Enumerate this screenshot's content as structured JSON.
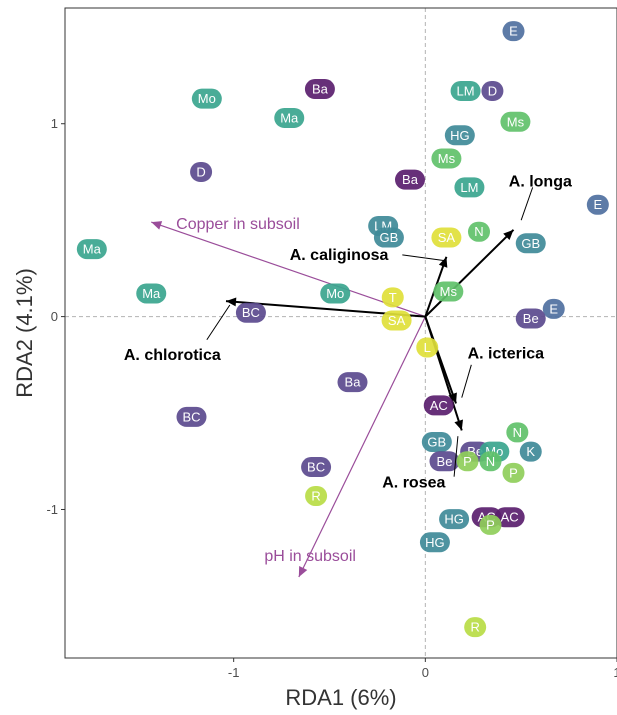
{
  "chart_data": {
    "type": "scatter",
    "xlabel": "RDA1 (6%)",
    "ylabel": "RDA2 (4.1%)",
    "xlim": [
      -1.88,
      1.0
    ],
    "ylim": [
      -1.77,
      1.6
    ],
    "x_ticks": [
      {
        "value": -1,
        "label": "-1"
      },
      {
        "value": 0,
        "label": "0"
      },
      {
        "value": 1,
        "label": "1"
      }
    ],
    "y_ticks": [
      {
        "value": -1,
        "label": "-1"
      },
      {
        "value": 0,
        "label": "0"
      },
      {
        "value": 1,
        "label": "1"
      }
    ],
    "grid": false,
    "zero_lines": true,
    "colors": {
      "dark_purple": "#5a1e6e",
      "purple": "#5b4a8e",
      "slate_blue": "#4f70a0",
      "teal_blue": "#3f8a98",
      "teal": "#3aa58e",
      "green": "#61c16a",
      "light_green": "#8fce5a",
      "yellow_green": "#b9dc45",
      "yellow": "#e0df3a",
      "env_arrow": "#9a4d9a",
      "species_arrow": "#000000"
    },
    "sites": [
      {
        "label": "E",
        "x": 0.46,
        "y": 1.48,
        "color": "#4f70a0"
      },
      {
        "label": "Ba",
        "x": -0.55,
        "y": 1.18,
        "color": "#5a1e6e"
      },
      {
        "label": "LM",
        "x": 0.21,
        "y": 1.17,
        "color": "#3aa58e"
      },
      {
        "label": "D",
        "x": 0.35,
        "y": 1.17,
        "color": "#5b4a8e"
      },
      {
        "label": "Mo",
        "x": -1.14,
        "y": 1.13,
        "color": "#3aa58e"
      },
      {
        "label": "Ma",
        "x": -0.71,
        "y": 1.03,
        "color": "#3aa58e"
      },
      {
        "label": "Ms",
        "x": 0.47,
        "y": 1.01,
        "color": "#61c16a"
      },
      {
        "label": "HG",
        "x": 0.18,
        "y": 0.94,
        "color": "#3f8a98"
      },
      {
        "label": "Ms",
        "x": 0.11,
        "y": 0.82,
        "color": "#61c16a"
      },
      {
        "label": "D",
        "x": -1.17,
        "y": 0.75,
        "color": "#5b4a8e"
      },
      {
        "label": "Ba",
        "x": -0.08,
        "y": 0.71,
        "color": "#5a1e6e"
      },
      {
        "label": "LM",
        "x": 0.23,
        "y": 0.67,
        "color": "#3aa58e"
      },
      {
        "label": "E",
        "x": 0.9,
        "y": 0.58,
        "color": "#4f70a0"
      },
      {
        "label": "LM",
        "x": -0.22,
        "y": 0.47,
        "color": "#3f8a98"
      },
      {
        "label": "N",
        "x": 0.28,
        "y": 0.44,
        "color": "#61c16a"
      },
      {
        "label": "SA",
        "x": 0.11,
        "y": 0.41,
        "color": "#e0df3a"
      },
      {
        "label": "GB",
        "x": -0.19,
        "y": 0.41,
        "color": "#3f8a98"
      },
      {
        "label": "GB",
        "x": 0.55,
        "y": 0.38,
        "color": "#3f8a98"
      },
      {
        "label": "Ma",
        "x": -1.74,
        "y": 0.35,
        "color": "#3aa58e"
      },
      {
        "label": "Ma",
        "x": -1.43,
        "y": 0.12,
        "color": "#3aa58e"
      },
      {
        "label": "Mo",
        "x": -0.47,
        "y": 0.12,
        "color": "#3aa58e"
      },
      {
        "label": "Ms",
        "x": 0.12,
        "y": 0.13,
        "color": "#61c16a"
      },
      {
        "label": "T",
        "x": -0.17,
        "y": 0.1,
        "color": "#e0df3a"
      },
      {
        "label": "BC",
        "x": -0.91,
        "y": 0.02,
        "color": "#5b4a8e"
      },
      {
        "label": "E",
        "x": 0.67,
        "y": 0.04,
        "color": "#4f70a0"
      },
      {
        "label": "SA",
        "x": -0.15,
        "y": -0.02,
        "color": "#e0df3a"
      },
      {
        "label": "Be",
        "x": 0.55,
        "y": -0.01,
        "color": "#5b4a8e"
      },
      {
        "label": "L",
        "x": 0.01,
        "y": -0.16,
        "color": "#e0df3a"
      },
      {
        "label": "Ba",
        "x": -0.38,
        "y": -0.34,
        "color": "#5b4a8e"
      },
      {
        "label": "AC",
        "x": 0.07,
        "y": -0.46,
        "color": "#5a1e6e"
      },
      {
        "label": "BC",
        "x": -1.22,
        "y": -0.52,
        "color": "#5b4a8e"
      },
      {
        "label": "N",
        "x": 0.48,
        "y": -0.6,
        "color": "#61c16a"
      },
      {
        "label": "GB",
        "x": 0.06,
        "y": -0.65,
        "color": "#3f8a98"
      },
      {
        "label": "Be",
        "x": 0.26,
        "y": -0.7,
        "color": "#5b4a8e"
      },
      {
        "label": "Mo",
        "x": 0.36,
        "y": -0.7,
        "color": "#3aa58e"
      },
      {
        "label": "K",
        "x": 0.55,
        "y": -0.7,
        "color": "#3f8a98"
      },
      {
        "label": "Be",
        "x": 0.1,
        "y": -0.75,
        "color": "#5b4a8e"
      },
      {
        "label": "P",
        "x": 0.22,
        "y": -0.75,
        "color": "#8fce5a"
      },
      {
        "label": "N",
        "x": 0.34,
        "y": -0.75,
        "color": "#61c16a"
      },
      {
        "label": "BC",
        "x": -0.57,
        "y": -0.78,
        "color": "#5b4a8e"
      },
      {
        "label": "P",
        "x": 0.46,
        "y": -0.81,
        "color": "#8fce5a"
      },
      {
        "label": "R",
        "x": -0.57,
        "y": -0.93,
        "color": "#b9dc45"
      },
      {
        "label": "HG",
        "x": 0.15,
        "y": -1.05,
        "color": "#3f8a98"
      },
      {
        "label": "AC",
        "x": 0.32,
        "y": -1.04,
        "color": "#5a1e6e"
      },
      {
        "label": "AC",
        "x": 0.44,
        "y": -1.04,
        "color": "#5a1e6e"
      },
      {
        "label": "P",
        "x": 0.34,
        "y": -1.08,
        "color": "#8fce5a"
      },
      {
        "label": "HG",
        "x": 0.05,
        "y": -1.17,
        "color": "#3f8a98"
      },
      {
        "label": "R",
        "x": 0.26,
        "y": -1.61,
        "color": "#b9dc45"
      }
    ],
    "species": [
      {
        "name": "A. longa",
        "x": 0.46,
        "y": 0.45,
        "label_x": 0.6,
        "label_y": 0.7,
        "leader_from": [
          0.56,
          0.67
        ],
        "leader_to": [
          0.5,
          0.5
        ]
      },
      {
        "name": "A. caliginosa",
        "x": 0.11,
        "y": 0.31,
        "label_x": -0.45,
        "label_y": 0.32,
        "leader_from": [
          -0.12,
          0.32
        ],
        "leader_to": [
          0.1,
          0.29
        ]
      },
      {
        "name": "A. chlorotica",
        "x": -1.04,
        "y": 0.08,
        "label_x": -1.32,
        "label_y": -0.2,
        "leader_from": [
          -1.14,
          -0.12
        ],
        "leader_to": [
          -1.02,
          0.06
        ]
      },
      {
        "name": "A. icterica",
        "x": 0.16,
        "y": -0.45,
        "label_x": 0.42,
        "label_y": -0.19,
        "leader_from": [
          0.24,
          -0.25
        ],
        "leader_to": [
          0.19,
          -0.42
        ]
      },
      {
        "name": "A. rosea",
        "x": 0.19,
        "y": -0.59,
        "label_x": -0.06,
        "label_y": -0.86,
        "leader_from": [
          0.15,
          -0.83
        ],
        "leader_to": [
          0.17,
          -0.62
        ]
      }
    ],
    "environment": [
      {
        "name": "Copper in subsoil",
        "x": -1.43,
        "y": 0.49,
        "label_x": -1.3,
        "label_y": 0.48
      },
      {
        "name": "pH in subsoil",
        "x": -0.66,
        "y": -1.35,
        "label_x": -0.84,
        "label_y": -1.24
      }
    ]
  }
}
